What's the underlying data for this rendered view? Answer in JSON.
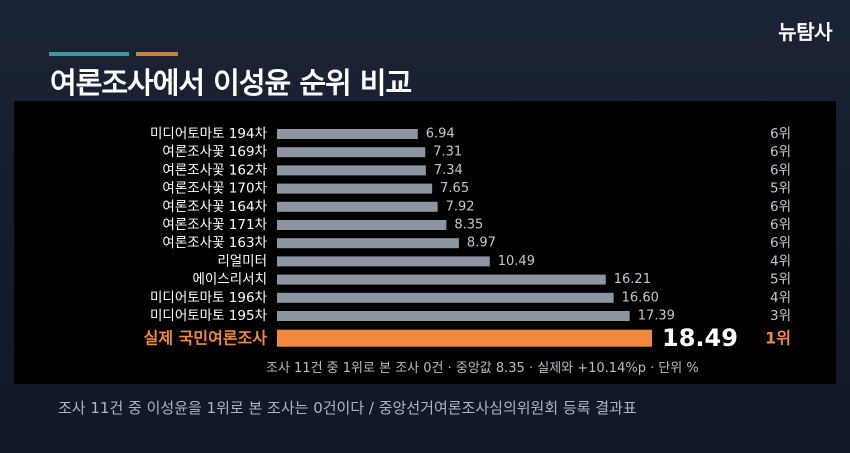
{
  "brand": "뉴탐사",
  "title": "여론조사에서 이성윤 순위 비교",
  "footnote": "조사 11건 중 1위로 본 조사 0건 · 중앙값 8.35 · 실제와 +10.14%p · 단위 %",
  "caption": "조사 11건 중 이성윤을 1위로 본 조사는 0건이다 / 중앙선거여론조사심의위원회 등록 결과표",
  "colors": {
    "bar": "#8d95a3",
    "highlight": "#f0883e",
    "label": "#ffffff",
    "value": "#c2c7cf",
    "rank": "#c2c7cf"
  },
  "chart_data": {
    "type": "bar",
    "orientation": "horizontal",
    "categories": [
      "미디어토마토 194차",
      "여론조사꽃 169차",
      "여론조사꽃 162차",
      "여론조사꽃 170차",
      "여론조사꽃 164차",
      "여론조사꽃 171차",
      "여론조사꽃 163차",
      "리얼미터",
      "에이스리서치",
      "미디어토마토 196차",
      "미디어토마토 195차",
      "실제 국민여론조사"
    ],
    "values": [
      6.94,
      7.31,
      7.34,
      7.65,
      7.92,
      8.35,
      8.97,
      10.49,
      16.21,
      16.6,
      17.39,
      18.49
    ],
    "value_labels": [
      "6.94",
      "7.31",
      "7.34",
      "7.65",
      "7.92",
      "8.35",
      "8.97",
      "10.49",
      "16.21",
      "16.60",
      "17.39",
      "18.49"
    ],
    "ranks": [
      "6위",
      "6위",
      "6위",
      "5위",
      "6위",
      "6위",
      "6위",
      "4위",
      "5위",
      "4위",
      "3위",
      "1위"
    ],
    "highlight_index": 11,
    "xlim": [
      0,
      18.49
    ],
    "grid": false,
    "legend": "none"
  }
}
